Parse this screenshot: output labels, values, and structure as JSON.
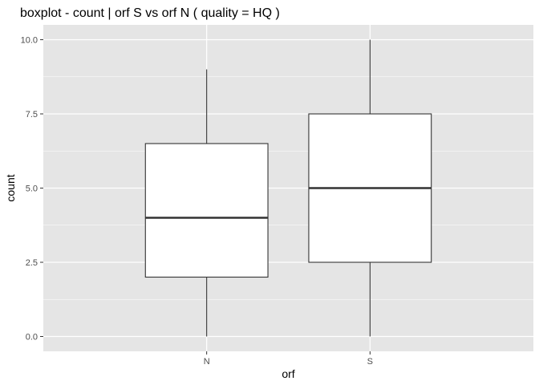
{
  "chart_data": {
    "type": "boxplot",
    "title": "boxplot - count | orf S vs orf N ( quality = HQ )",
    "xlabel": "orf",
    "ylabel": "count",
    "categories": [
      "N",
      "S"
    ],
    "ylim": [
      -0.5,
      10.5
    ],
    "yticks": [
      0.0,
      2.5,
      5.0,
      7.5,
      10.0
    ],
    "ytick_labels": [
      "0.0",
      "2.5",
      "5.0",
      "7.5",
      "10.0"
    ],
    "boxes": [
      {
        "category": "N",
        "min": 0,
        "q1": 2,
        "median": 4,
        "q3": 6.5,
        "max": 9
      },
      {
        "category": "S",
        "min": 0,
        "q1": 2.5,
        "median": 5,
        "q3": 7.5,
        "max": 10
      }
    ],
    "grid": true,
    "colors": {
      "panel_background": "#e5e5e5",
      "grid_major": "#ffffff",
      "box_fill": "#ffffff",
      "box_line": "#333333"
    }
  }
}
